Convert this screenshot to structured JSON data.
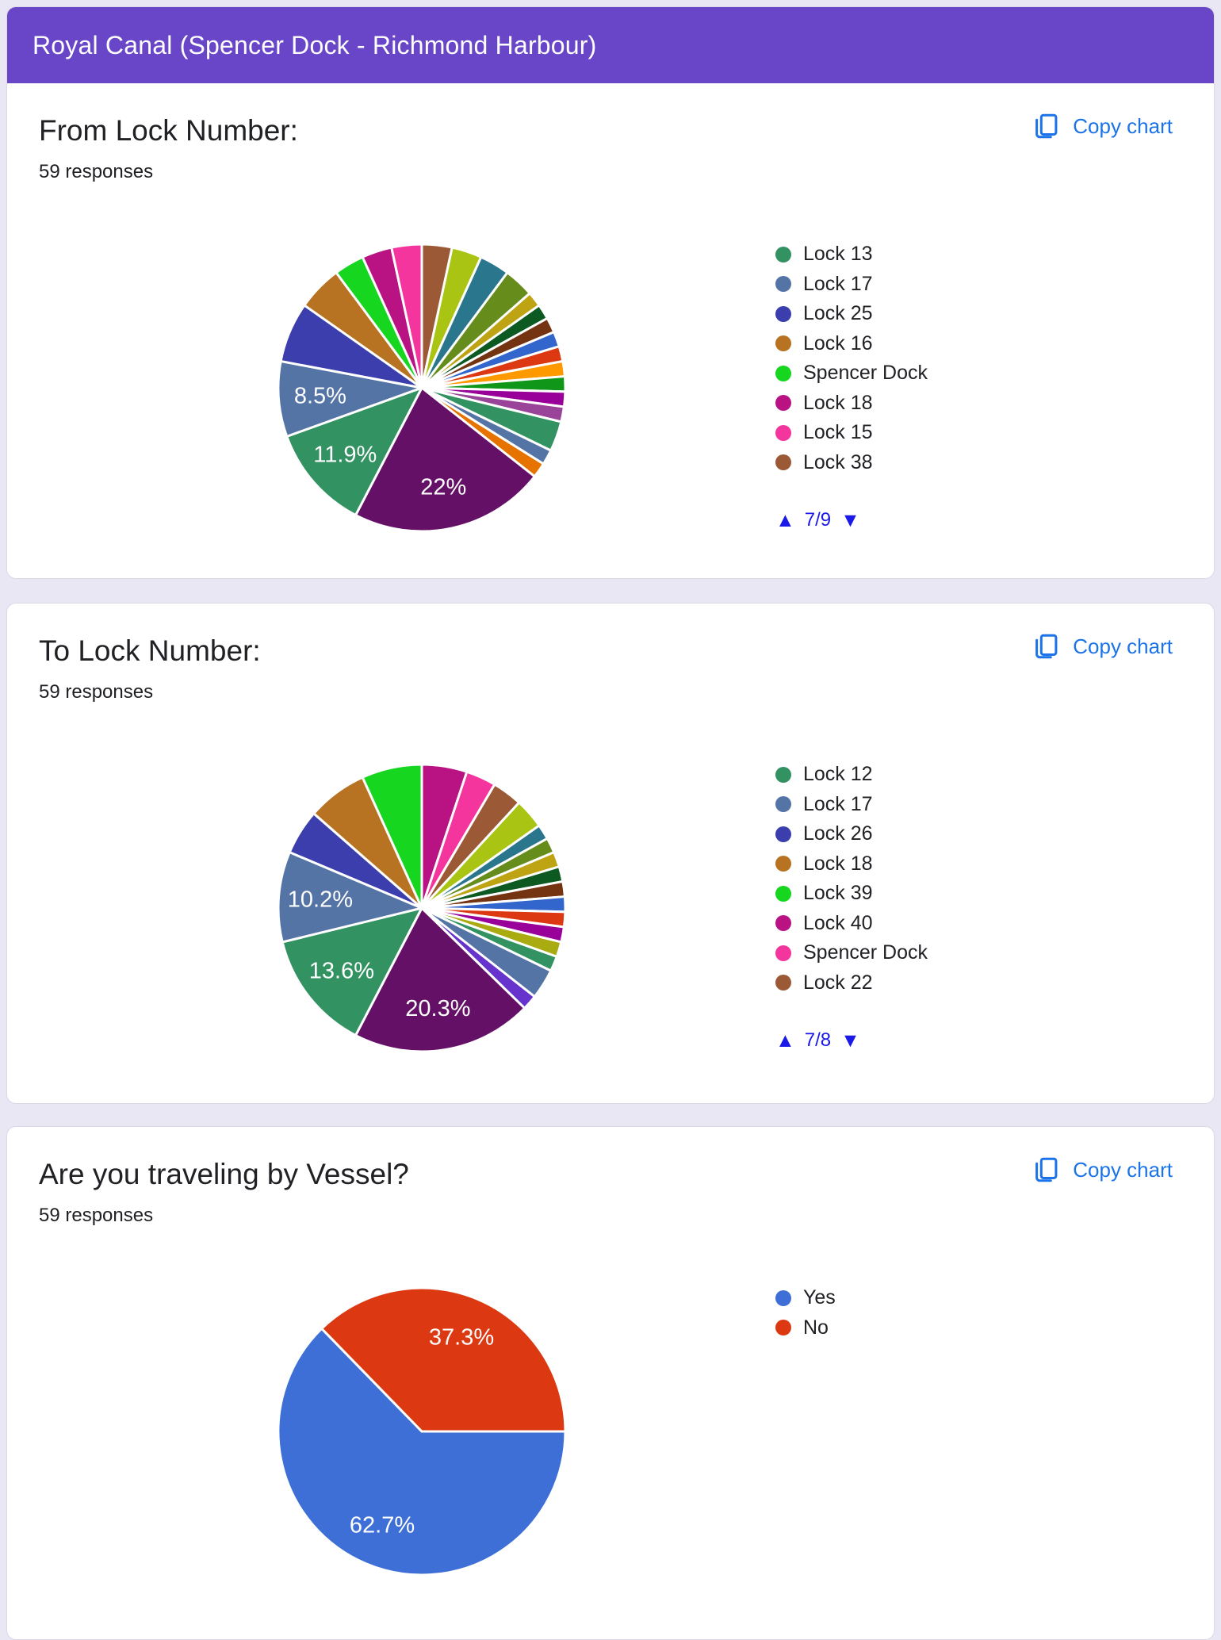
{
  "page": {
    "background": "#eae7f5",
    "card_border": "#dcd8e8"
  },
  "header": {
    "title": "Royal Canal (Spencer Dock - Richmond Harbour)",
    "background": "#6946c8",
    "text_color": "#ffffff"
  },
  "copy_button": {
    "label": "Copy chart",
    "color": "#1a73e8"
  },
  "legend_pager": {
    "up_icon": "▲",
    "down_icon": "▼",
    "color": "#1a1ae8"
  },
  "cards": [
    {
      "title": "From Lock Number:",
      "responses": "59 responses",
      "legend_page": "7/9"
    },
    {
      "title": "To Lock Number:",
      "responses": "59 responses",
      "legend_page": "7/8"
    },
    {
      "title": "Are you traveling by Vessel?",
      "responses": "59 responses",
      "legend_page": null
    }
  ],
  "chart_data": [
    {
      "type": "pie",
      "title": "From Lock Number:",
      "subtitle": "59 responses",
      "total_responses": 59,
      "start_angle": 0,
      "legend_position": "right",
      "label_color": "#ffffff",
      "legend": [
        {
          "label": "Lock 13",
          "color": "#329262"
        },
        {
          "label": "Lock 17",
          "color": "#5574a6"
        },
        {
          "label": "Lock 25",
          "color": "#3b3eac"
        },
        {
          "label": "Lock 16",
          "color": "#b77322"
        },
        {
          "label": "Spencer Dock",
          "color": "#16d620"
        },
        {
          "label": "Lock 18",
          "color": "#b91383"
        },
        {
          "label": "Lock 15",
          "color": "#f4359e"
        },
        {
          "label": "Lock 38",
          "color": "#9c5935"
        }
      ],
      "slices": [
        {
          "color": "#9c5935",
          "value": 2
        },
        {
          "color": "#a9c413",
          "value": 2
        },
        {
          "color": "#2a778d",
          "value": 2
        },
        {
          "color": "#668d1c",
          "value": 2
        },
        {
          "color": "#bea413",
          "value": 1
        },
        {
          "color": "#0c5922",
          "value": 1
        },
        {
          "color": "#743411",
          "value": 1
        },
        {
          "color": "#3366cc",
          "value": 1
        },
        {
          "color": "#dc3912",
          "value": 1
        },
        {
          "color": "#ff9900",
          "value": 1
        },
        {
          "color": "#109618",
          "value": 1
        },
        {
          "color": "#990099",
          "value": 1
        },
        {
          "color": "#994499",
          "value": 1
        },
        {
          "color": "#329262",
          "value": 2
        },
        {
          "color": "#5574a6",
          "value": 1
        },
        {
          "color": "#e67300",
          "value": 1
        },
        {
          "color": "#651067",
          "value": 13,
          "pct_label": "22%"
        },
        {
          "color": "#329262",
          "value": 7,
          "pct_label": "11.9%"
        },
        {
          "color": "#5574a6",
          "value": 5,
          "pct_label": "8.5%"
        },
        {
          "color": "#3b3eac",
          "value": 4
        },
        {
          "color": "#b77322",
          "value": 3
        },
        {
          "color": "#16d620",
          "value": 2
        },
        {
          "color": "#b91383",
          "value": 2
        },
        {
          "color": "#f4359e",
          "value": 2
        }
      ]
    },
    {
      "type": "pie",
      "title": "To Lock Number:",
      "subtitle": "59 responses",
      "total_responses": 59,
      "start_angle": 0,
      "legend_position": "right",
      "label_color": "#ffffff",
      "legend": [
        {
          "label": "Lock 12",
          "color": "#329262"
        },
        {
          "label": "Lock 17",
          "color": "#5574a6"
        },
        {
          "label": "Lock 26",
          "color": "#3b3eac"
        },
        {
          "label": "Lock 18",
          "color": "#b77322"
        },
        {
          "label": "Lock 39",
          "color": "#16d620"
        },
        {
          "label": "Lock 40",
          "color": "#b91383"
        },
        {
          "label": "Spencer Dock",
          "color": "#f4359e"
        },
        {
          "label": "Lock 22",
          "color": "#9c5935"
        }
      ],
      "slices": [
        {
          "color": "#b91383",
          "value": 3
        },
        {
          "color": "#f4359e",
          "value": 2
        },
        {
          "color": "#9c5935",
          "value": 2
        },
        {
          "color": "#a9c413",
          "value": 2
        },
        {
          "color": "#2a778d",
          "value": 1
        },
        {
          "color": "#668d1c",
          "value": 1
        },
        {
          "color": "#bea413",
          "value": 1
        },
        {
          "color": "#0c5922",
          "value": 1
        },
        {
          "color": "#743411",
          "value": 1
        },
        {
          "color": "#3366cc",
          "value": 1
        },
        {
          "color": "#dc3912",
          "value": 1
        },
        {
          "color": "#990099",
          "value": 1
        },
        {
          "color": "#aaaa11",
          "value": 1
        },
        {
          "color": "#329262",
          "value": 1
        },
        {
          "color": "#5574a6",
          "value": 2
        },
        {
          "color": "#6633cc",
          "value": 1
        },
        {
          "color": "#651067",
          "value": 12,
          "pct_label": "20.3%"
        },
        {
          "color": "#329262",
          "value": 8,
          "pct_label": "13.6%"
        },
        {
          "color": "#5574a6",
          "value": 6,
          "pct_label": "10.2%"
        },
        {
          "color": "#3b3eac",
          "value": 3
        },
        {
          "color": "#b77322",
          "value": 4
        },
        {
          "color": "#16d620",
          "value": 4
        }
      ]
    },
    {
      "type": "pie",
      "title": "Are you traveling by Vessel?",
      "subtitle": "59 responses",
      "total_responses": 59,
      "start_angle": 90,
      "legend_position": "right",
      "label_color": "#ffffff",
      "legend": [
        {
          "label": "Yes",
          "color": "#3d6fd6"
        },
        {
          "label": "No",
          "color": "#dc3912"
        }
      ],
      "slices": [
        {
          "label": "Yes",
          "color": "#3d6fd6",
          "value": 37,
          "pct_label": "62.7%"
        },
        {
          "label": "No",
          "color": "#dc3912",
          "value": 22,
          "pct_label": "37.3%"
        }
      ]
    }
  ]
}
